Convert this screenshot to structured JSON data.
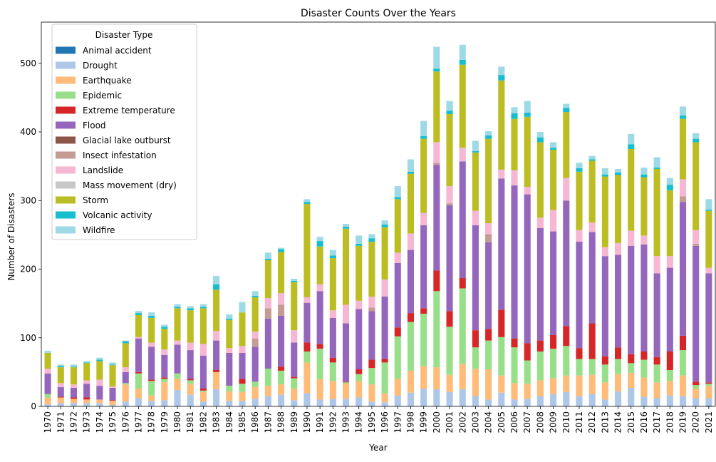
{
  "chart_data": {
    "type": "bar",
    "stacked": true,
    "title": "Disaster Counts Over the Years",
    "xlabel": "Year",
    "ylabel": "Number of Disasters",
    "ylim": [
      0,
      560
    ],
    "yticks": [
      0,
      100,
      200,
      300,
      400,
      500
    ],
    "grid": false,
    "legend_title": "Disaster Type",
    "legend_position": "top-left",
    "categories": [
      "1970",
      "1971",
      "1972",
      "1973",
      "1974",
      "1975",
      "1976",
      "1977",
      "1978",
      "1979",
      "1980",
      "1981",
      "1982",
      "1983",
      "1984",
      "1985",
      "1986",
      "1987",
      "1988",
      "1989",
      "1990",
      "1991",
      "1992",
      "1993",
      "1994",
      "1995",
      "1996",
      "1997",
      "1998",
      "1999",
      "2000",
      "2001",
      "2002",
      "2003",
      "2004",
      "2005",
      "2006",
      "2007",
      "2008",
      "2009",
      "2010",
      "2011",
      "2012",
      "2013",
      "2014",
      "2015",
      "2016",
      "2017",
      "2018",
      "2019",
      "2020",
      "2021"
    ],
    "series": [
      {
        "name": "Animal accident",
        "color": "#1f77b4",
        "values": [
          0,
          0,
          0,
          0,
          0,
          0,
          0,
          0,
          0,
          0,
          0,
          0,
          0,
          0,
          0,
          0,
          0,
          0,
          0,
          0,
          0,
          0,
          0,
          0,
          0,
          0,
          0,
          0,
          0,
          0,
          0,
          0,
          0,
          0,
          0,
          0,
          0,
          0,
          0,
          0,
          0,
          0,
          0,
          0,
          0,
          0,
          0,
          0,
          0,
          0,
          0,
          1
        ]
      },
      {
        "name": "Drought",
        "color": "#aec7e8",
        "values": [
          3,
          5,
          5,
          5,
          5,
          2,
          7,
          12,
          8,
          9,
          24,
          17,
          7,
          25,
          8,
          8,
          11,
          15,
          17,
          9,
          19,
          10,
          11,
          11,
          13,
          7,
          6,
          16,
          20,
          26,
          25,
          21,
          25,
          15,
          10,
          20,
          10,
          11,
          15,
          18,
          21,
          15,
          18,
          10,
          22,
          27,
          14,
          12,
          16,
          15,
          12,
          11
        ]
      },
      {
        "name": "Earthquake",
        "color": "#ffbb78",
        "values": [
          10,
          8,
          6,
          5,
          5,
          6,
          25,
          14,
          8,
          26,
          16,
          16,
          14,
          25,
          14,
          13,
          17,
          15,
          15,
          17,
          45,
          30,
          26,
          22,
          24,
          25,
          13,
          24,
          32,
          33,
          32,
          25,
          37,
          40,
          44,
          25,
          24,
          22,
          23,
          23,
          24,
          30,
          28,
          25,
          25,
          22,
          28,
          23,
          21,
          30,
          14,
          18
        ]
      },
      {
        "name": "Epidemic",
        "color": "#98df8a",
        "values": [
          5,
          0,
          0,
          0,
          0,
          0,
          2,
          22,
          21,
          5,
          8,
          5,
          2,
          0,
          8,
          12,
          8,
          25,
          20,
          15,
          16,
          44,
          27,
          2,
          10,
          24,
          45,
          62,
          71,
          76,
          111,
          70,
          110,
          31,
          42,
          56,
          52,
          34,
          42,
          43,
          43,
          24,
          23,
          26,
          22,
          14,
          26,
          26,
          16,
          37,
          5,
          3
        ]
      },
      {
        "name": "Extreme temperature",
        "color": "#d62728",
        "values": [
          0,
          1,
          2,
          3,
          0,
          1,
          0,
          2,
          2,
          2,
          0,
          2,
          3,
          3,
          0,
          7,
          0,
          0,
          6,
          2,
          13,
          7,
          7,
          1,
          7,
          12,
          5,
          13,
          13,
          8,
          30,
          23,
          15,
          25,
          17,
          40,
          13,
          25,
          16,
          20,
          29,
          16,
          52,
          12,
          17,
          13,
          12,
          11,
          27,
          21,
          5,
          2
        ]
      },
      {
        "name": "Flood",
        "color": "#9467bd",
        "values": [
          30,
          14,
          14,
          20,
          20,
          18,
          16,
          49,
          48,
          33,
          42,
          42,
          48,
          43,
          48,
          38,
          51,
          73,
          74,
          50,
          58,
          77,
          58,
          85,
          88,
          71,
          91,
          94,
          92,
          121,
          154,
          154,
          170,
          153,
          126,
          191,
          223,
          217,
          164,
          151,
          183,
          155,
          133,
          146,
          135,
          158,
          156,
          122,
          122,
          195,
          198,
          159
        ]
      },
      {
        "name": "Glacial lake outburst",
        "color": "#8c564b",
        "values": [
          0,
          0,
          0,
          0,
          0,
          0,
          0,
          0,
          0,
          0,
          0,
          0,
          0,
          0,
          0,
          0,
          0,
          0,
          0,
          0,
          0,
          0,
          0,
          0,
          0,
          0,
          0,
          0,
          0,
          0,
          0,
          0,
          0,
          0,
          0,
          0,
          0,
          0,
          0,
          0,
          0,
          0,
          0,
          0,
          0,
          0,
          0,
          0,
          0,
          0,
          0,
          0
        ]
      },
      {
        "name": "Insect infestation",
        "color": "#c49c94",
        "values": [
          0,
          0,
          0,
          0,
          0,
          0,
          0,
          0,
          0,
          0,
          0,
          0,
          0,
          0,
          0,
          0,
          12,
          15,
          16,
          0,
          0,
          0,
          0,
          0,
          0,
          5,
          0,
          0,
          0,
          0,
          3,
          3,
          0,
          0,
          12,
          0,
          0,
          0,
          0,
          0,
          0,
          0,
          0,
          0,
          0,
          0,
          0,
          0,
          0,
          8,
          3,
          0
        ]
      },
      {
        "name": "Landslide",
        "color": "#f7b6d2",
        "values": [
          7,
          6,
          5,
          5,
          9,
          2,
          7,
          2,
          6,
          8,
          6,
          11,
          17,
          14,
          7,
          10,
          10,
          15,
          17,
          18,
          8,
          10,
          11,
          27,
          12,
          16,
          25,
          15,
          24,
          18,
          30,
          25,
          20,
          21,
          16,
          13,
          22,
          11,
          15,
          31,
          33,
          17,
          14,
          13,
          17,
          22,
          13,
          25,
          17,
          25,
          20,
          8
        ]
      },
      {
        "name": "Mass movement (dry)",
        "color": "#c7c7c7",
        "values": [
          0,
          0,
          0,
          0,
          0,
          0,
          0,
          0,
          0,
          0,
          0,
          0,
          0,
          0,
          0,
          0,
          0,
          0,
          0,
          0,
          0,
          0,
          0,
          0,
          0,
          0,
          0,
          0,
          0,
          0,
          0,
          0,
          0,
          0,
          0,
          0,
          0,
          0,
          0,
          0,
          0,
          0,
          0,
          0,
          0,
          0,
          0,
          0,
          0,
          0,
          0,
          0
        ]
      },
      {
        "name": "Storm",
        "color": "#bcbd22",
        "values": [
          23,
          23,
          25,
          25,
          27,
          31,
          35,
          32,
          36,
          30,
          47,
          47,
          52,
          60,
          41,
          49,
          50,
          55,
          60,
          70,
          136,
          55,
          76,
          111,
          80,
          80,
          76,
          78,
          87,
          108,
          103,
          105,
          121,
          85,
          123,
          130,
          75,
          102,
          110,
          88,
          96,
          85,
          90,
          103,
          99,
          119,
          85,
          127,
          96,
          88,
          128,
          83
        ]
      },
      {
        "name": "Volcanic activity",
        "color": "#17becf",
        "values": [
          0,
          2,
          1,
          1,
          2,
          1,
          3,
          3,
          3,
          3,
          2,
          3,
          2,
          8,
          2,
          0,
          2,
          2,
          4,
          2,
          3,
          8,
          4,
          3,
          3,
          5,
          4,
          3,
          3,
          4,
          4,
          5,
          7,
          2,
          5,
          8,
          8,
          6,
          7,
          3,
          6,
          5,
          2,
          3,
          4,
          7,
          4,
          2,
          8,
          5,
          5,
          2
        ]
      },
      {
        "name": "Wildfire",
        "color": "#9edae5",
        "values": [
          3,
          2,
          3,
          2,
          3,
          3,
          1,
          3,
          5,
          3,
          4,
          3,
          4,
          12,
          6,
          15,
          7,
          9,
          2,
          3,
          4,
          6,
          8,
          4,
          12,
          6,
          6,
          16,
          18,
          22,
          32,
          14,
          22,
          15,
          6,
          12,
          9,
          17,
          8,
          8,
          6,
          8,
          5,
          9,
          5,
          15,
          10,
          15,
          10,
          13,
          8,
          15
        ]
      }
    ]
  }
}
